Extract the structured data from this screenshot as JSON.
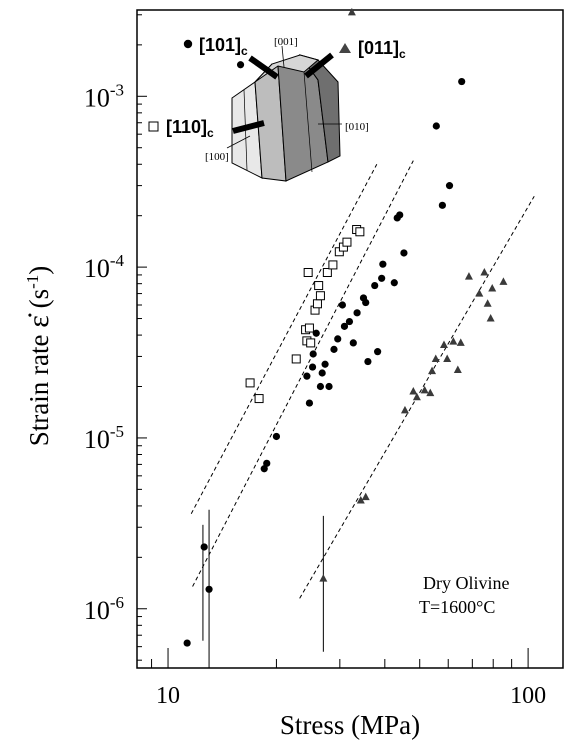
{
  "chart_data": {
    "type": "scatter",
    "xscale": "log",
    "yscale": "log",
    "xlim": [
      8.2,
      125
    ],
    "ylim": [
      4.5e-07,
      0.0032
    ],
    "xlabel": "Stress (MPa)",
    "ylabel_prefix": "Strain rate ",
    "ylabel_symbol": "ε̇",
    "ylabel_unit": "(s",
    "ylabel_unit_exp": "-1",
    "ylabel_unit_close": ")",
    "xticks": [
      {
        "value": 10,
        "label": "10"
      },
      {
        "value": 100,
        "label": "100"
      }
    ],
    "yticks": [
      {
        "value": 1e-06,
        "base": "10",
        "exp": "-6"
      },
      {
        "value": 1e-05,
        "base": "10",
        "exp": "-5"
      },
      {
        "value": 0.0001,
        "base": "10",
        "exp": "-4"
      },
      {
        "value": 0.001,
        "base": "10",
        "exp": "-3"
      }
    ],
    "annotation": [
      "Dry Olivine",
      "T=1600°C"
    ],
    "series": [
      {
        "name": "[110]c",
        "marker": "square-open",
        "points": [
          [
            16.9,
            2.1e-05
          ],
          [
            17.9,
            1.7e-05
          ],
          [
            22.7,
            2.9e-05
          ],
          [
            24.1,
            4.3e-05
          ],
          [
            24.3,
            3.7e-05
          ],
          [
            24.7,
            4.4e-05
          ],
          [
            24.9,
            3.6e-05
          ],
          [
            24.5,
            9.3e-05
          ],
          [
            25.6,
            5.6e-05
          ],
          [
            26.0,
            6.1e-05
          ],
          [
            26.2,
            7.8e-05
          ],
          [
            26.5,
            6.8e-05
          ],
          [
            27.7,
            9.3e-05
          ],
          [
            28.7,
            0.000103
          ],
          [
            29.9,
            0.000123
          ],
          [
            30.7,
            0.000131
          ],
          [
            31.4,
            0.00014
          ],
          [
            33.4,
            0.000166
          ],
          [
            34.1,
            0.000161
          ]
        ]
      },
      {
        "name": "[101]c",
        "marker": "circle-filled",
        "points": [
          [
            11.3,
            6.3e-07
          ],
          [
            12.6,
            2.3e-06
          ],
          [
            13.0,
            1.3e-06
          ],
          [
            18.5,
            6.6e-06
          ],
          [
            18.8,
            7.1e-06
          ],
          [
            20.0,
            1.02e-05
          ],
          [
            24.7,
            1.6e-05
          ],
          [
            24.3,
            2.3e-05
          ],
          [
            25.3,
            3.1e-05
          ],
          [
            25.8,
            4.1e-05
          ],
          [
            25.2,
            2.6e-05
          ],
          [
            26.5,
            2e-05
          ],
          [
            26.8,
            2.4e-05
          ],
          [
            27.3,
            2.7e-05
          ],
          [
            28.0,
            2e-05
          ],
          [
            28.9,
            3.3e-05
          ],
          [
            29.6,
            3.8e-05
          ],
          [
            30.5,
            6e-05
          ],
          [
            30.9,
            4.5e-05
          ],
          [
            31.9,
            4.8e-05
          ],
          [
            32.7,
            3.6e-05
          ],
          [
            33.5,
            5.4e-05
          ],
          [
            34.9,
            6.6e-05
          ],
          [
            35.4,
            6.2e-05
          ],
          [
            35.9,
            2.8e-05
          ],
          [
            37.5,
            7.8e-05
          ],
          [
            38.2,
            3.2e-05
          ],
          [
            39.5,
            0.000104
          ],
          [
            39.2,
            8.6e-05
          ],
          [
            42.5,
            8.1e-05
          ],
          [
            43.3,
            0.000194
          ],
          [
            44.0,
            0.000202
          ],
          [
            45.2,
            0.000121
          ],
          [
            55.6,
            0.00067
          ],
          [
            57.8,
            0.00023
          ],
          [
            60.5,
            0.0003
          ],
          [
            65.4,
            0.00122
          ],
          [
            15.9,
            0.00153
          ]
        ]
      },
      {
        "name": "[011]c",
        "marker": "triangle-filled",
        "points": [
          [
            27.0,
            1.5e-06
          ],
          [
            34.3,
            4.3e-06
          ],
          [
            35.4,
            4.5e-06
          ],
          [
            45.5,
            1.45e-05
          ],
          [
            48.0,
            1.87e-05
          ],
          [
            49.1,
            1.73e-05
          ],
          [
            51.6,
            1.9e-05
          ],
          [
            53.5,
            1.83e-05
          ],
          [
            55.4,
            2.9e-05
          ],
          [
            58.4,
            3.5e-05
          ],
          [
            54.1,
            2.46e-05
          ],
          [
            59.6,
            2.9e-05
          ],
          [
            62.0,
            3.66e-05
          ],
          [
            63.8,
            2.5e-05
          ],
          [
            65.0,
            3.6e-05
          ],
          [
            68.5,
            8.8e-05
          ],
          [
            75.6,
            9.3e-05
          ],
          [
            77.2,
            6.1e-05
          ],
          [
            78.7,
            5e-05
          ],
          [
            79.5,
            7.5e-05
          ],
          [
            73.2,
            7e-05
          ],
          [
            85.4,
            8.2e-05
          ],
          [
            32.4,
            0.0031
          ]
        ]
      }
    ],
    "fit_lines": [
      {
        "from": [
          11.6,
          3.6e-06
        ],
        "to": [
          38.0,
          0.0004
        ]
      },
      {
        "from": [
          11.7,
          1.35e-06
        ],
        "to": [
          48.0,
          0.00042
        ]
      },
      {
        "from": [
          23.2,
          1.15e-06
        ],
        "to": [
          104.0,
          0.00026
        ]
      }
    ],
    "error_bars": [
      {
        "x": 12.5,
        "y_low": 6.5e-07,
        "y_high": 3.1e-06
      },
      {
        "x": 13.0,
        "y_low": 4.5e-07,
        "y_high": 3.8e-06
      },
      {
        "x": 27.0,
        "y_low": 5.6e-07,
        "y_high": 3.5e-06
      }
    ]
  },
  "crystal": {
    "label_101": "[101]",
    "label_101_sub": "c",
    "label_011": "[011]",
    "label_011_sub": "c",
    "label_110": "[110]",
    "label_110_sub": "c",
    "axis_001": "[001]",
    "axis_010": "[010]",
    "axis_100": "[100]"
  }
}
